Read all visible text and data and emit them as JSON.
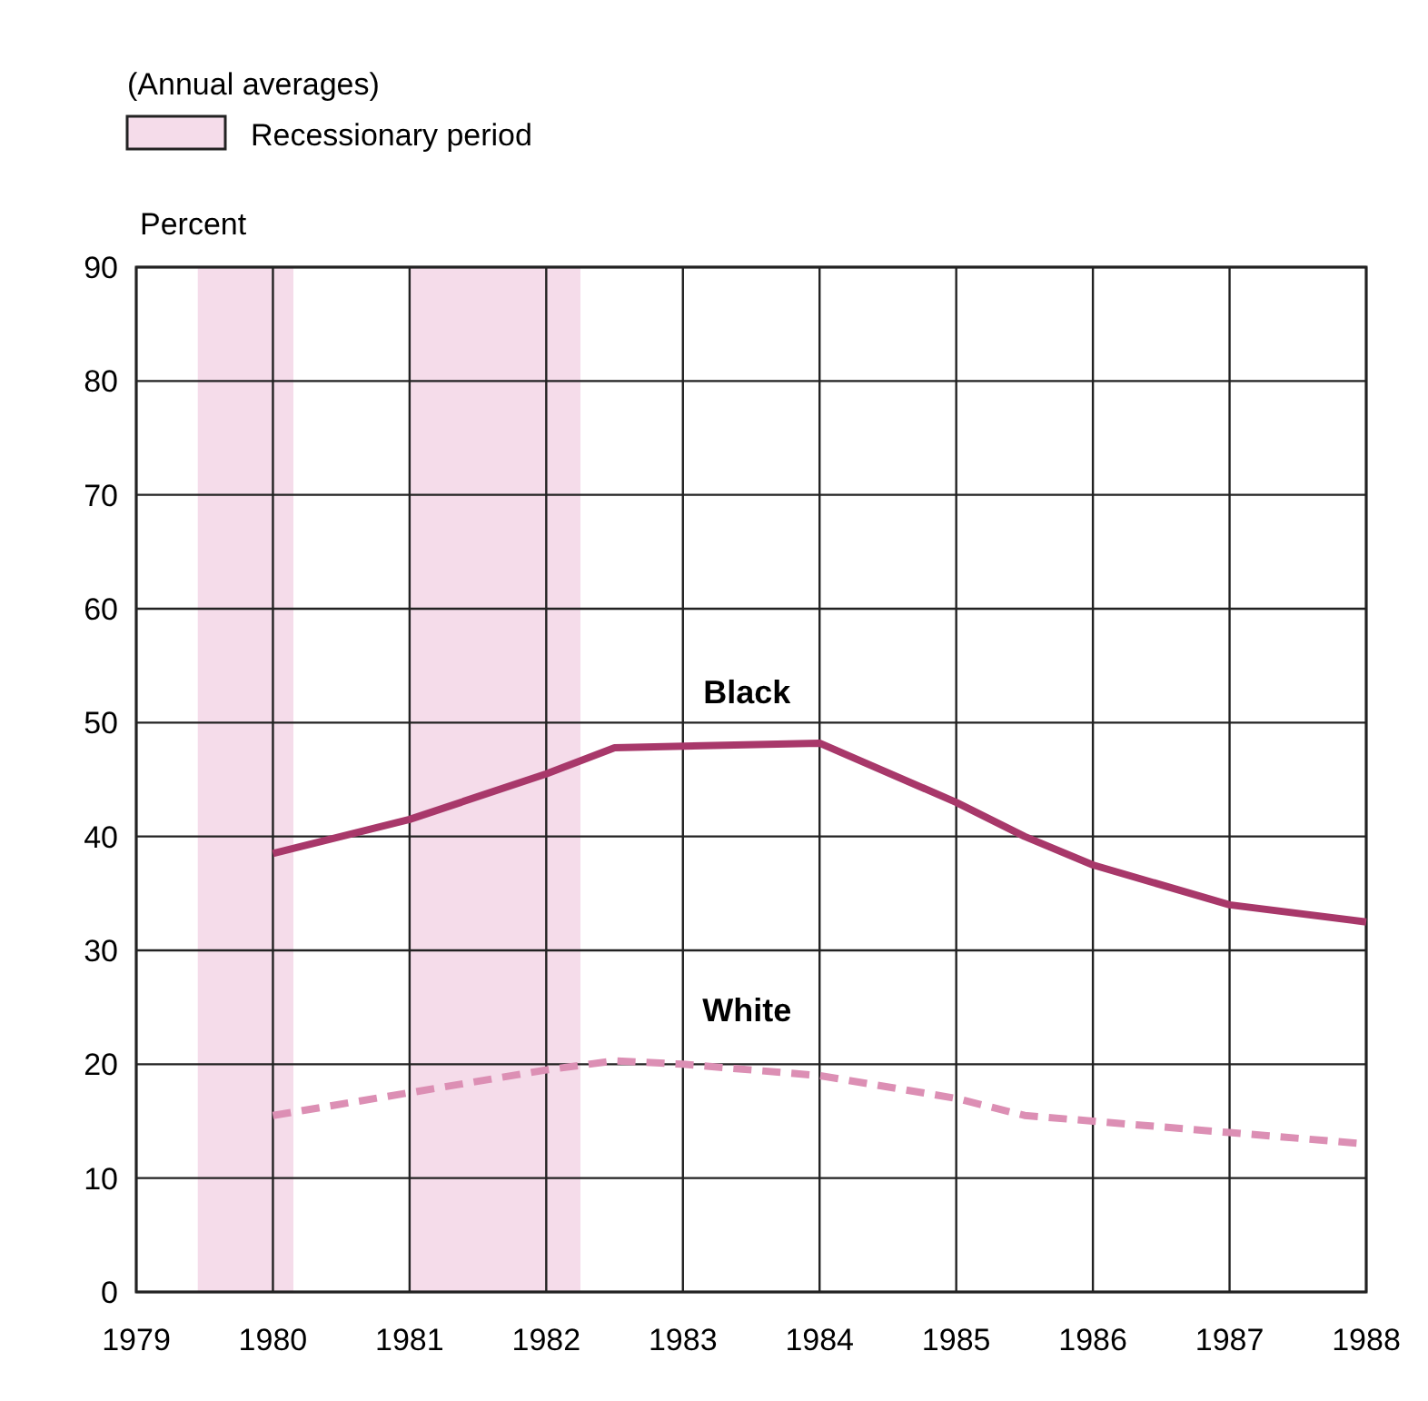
{
  "chart_data": {
    "type": "line",
    "ylabel": "Percent",
    "annotations": [
      "(Annual averages)"
    ],
    "xlim": [
      1979,
      1988
    ],
    "xticks": [
      1979,
      1980,
      1981,
      1982,
      1983,
      1984,
      1985,
      1986,
      1987,
      1988
    ],
    "ylim": [
      0,
      90
    ],
    "yticks": [
      0,
      10,
      20,
      30,
      40,
      50,
      60,
      70,
      80,
      90
    ],
    "grid": true,
    "legend": "top left",
    "bands": [
      {
        "axis": "x",
        "from": 1979.45,
        "to": 1980.15,
        "label": "Recessionary period",
        "color": "#f5dcea"
      },
      {
        "axis": "x",
        "from": 1981,
        "to": 1982.25,
        "color": "#f5dcea"
      }
    ],
    "series": [
      {
        "name": "Black",
        "color": "#a8386a",
        "line_style": "solid",
        "x": [
          1980,
          1981,
          1982,
          1982.5,
          1984,
          1985,
          1985.5,
          1986,
          1987,
          1988
        ],
        "values": [
          38.5,
          41.5,
          45.5,
          47.8,
          48.2,
          43,
          40,
          37.5,
          34,
          32.5
        ]
      },
      {
        "name": "White",
        "color": "#dc8fb4",
        "line_style": "dashed",
        "x": [
          1980,
          1981,
          1982,
          1982.5,
          1983,
          1984,
          1985,
          1985.5,
          1986,
          1987,
          1988
        ],
        "values": [
          15.5,
          17.5,
          19.5,
          20.3,
          20,
          19,
          17,
          15.5,
          15,
          14,
          13
        ]
      }
    ]
  }
}
